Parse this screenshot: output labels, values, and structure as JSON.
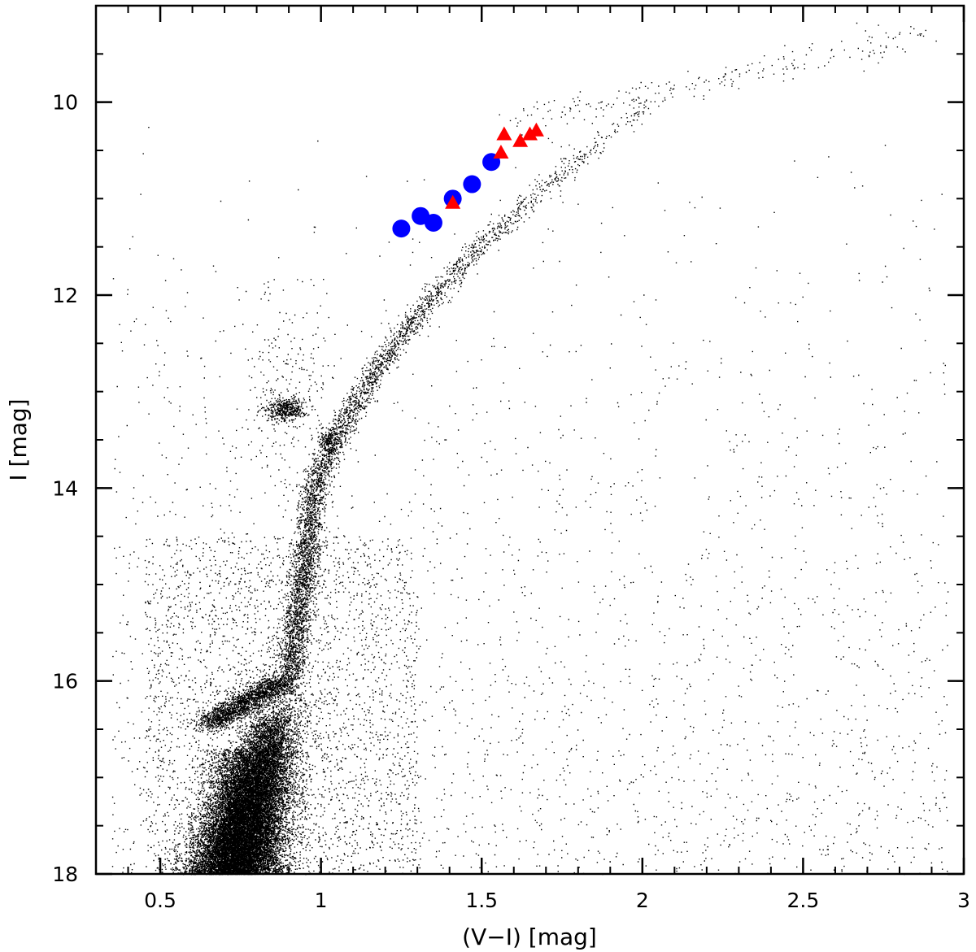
{
  "chart_data": {
    "type": "scatter",
    "title": "",
    "xlabel": "(V−I)  [mag]",
    "ylabel": "I  [mag]",
    "xlim": [
      0.3,
      3.0
    ],
    "ylim": [
      18.0,
      9.0
    ],
    "y_inverted": true,
    "grid": false,
    "x_major_ticks": [
      0.5,
      1,
      1.5,
      2,
      2.5,
      3
    ],
    "x_tick_labels": [
      "0.5",
      "1",
      "1.5",
      "2",
      "2.5",
      "3"
    ],
    "x_minor_step": 0.1,
    "y_major_ticks": [
      10,
      12,
      14,
      16,
      18
    ],
    "y_tick_labels": [
      "10",
      "12",
      "14",
      "16",
      "18"
    ],
    "y_minor_step": 0.5,
    "series": [
      {
        "marker": "circle",
        "color": "#0000ff",
        "points": [
          {
            "x": 1.25,
            "y": 11.31
          },
          {
            "x": 1.31,
            "y": 11.18
          },
          {
            "x": 1.35,
            "y": 11.25
          },
          {
            "x": 1.41,
            "y": 11.0
          },
          {
            "x": 1.47,
            "y": 10.85
          },
          {
            "x": 1.53,
            "y": 10.62
          }
        ]
      },
      {
        "marker": "triangle",
        "color": "#ff0000",
        "points": [
          {
            "x": 1.41,
            "y": 11.05
          },
          {
            "x": 1.56,
            "y": 10.53
          },
          {
            "x": 1.57,
            "y": 10.34
          },
          {
            "x": 1.62,
            "y": 10.41
          },
          {
            "x": 1.65,
            "y": 10.34
          },
          {
            "x": 1.67,
            "y": 10.3
          }
        ]
      }
    ],
    "background_stars": {
      "color": "#000000",
      "description_free": true
    }
  }
}
